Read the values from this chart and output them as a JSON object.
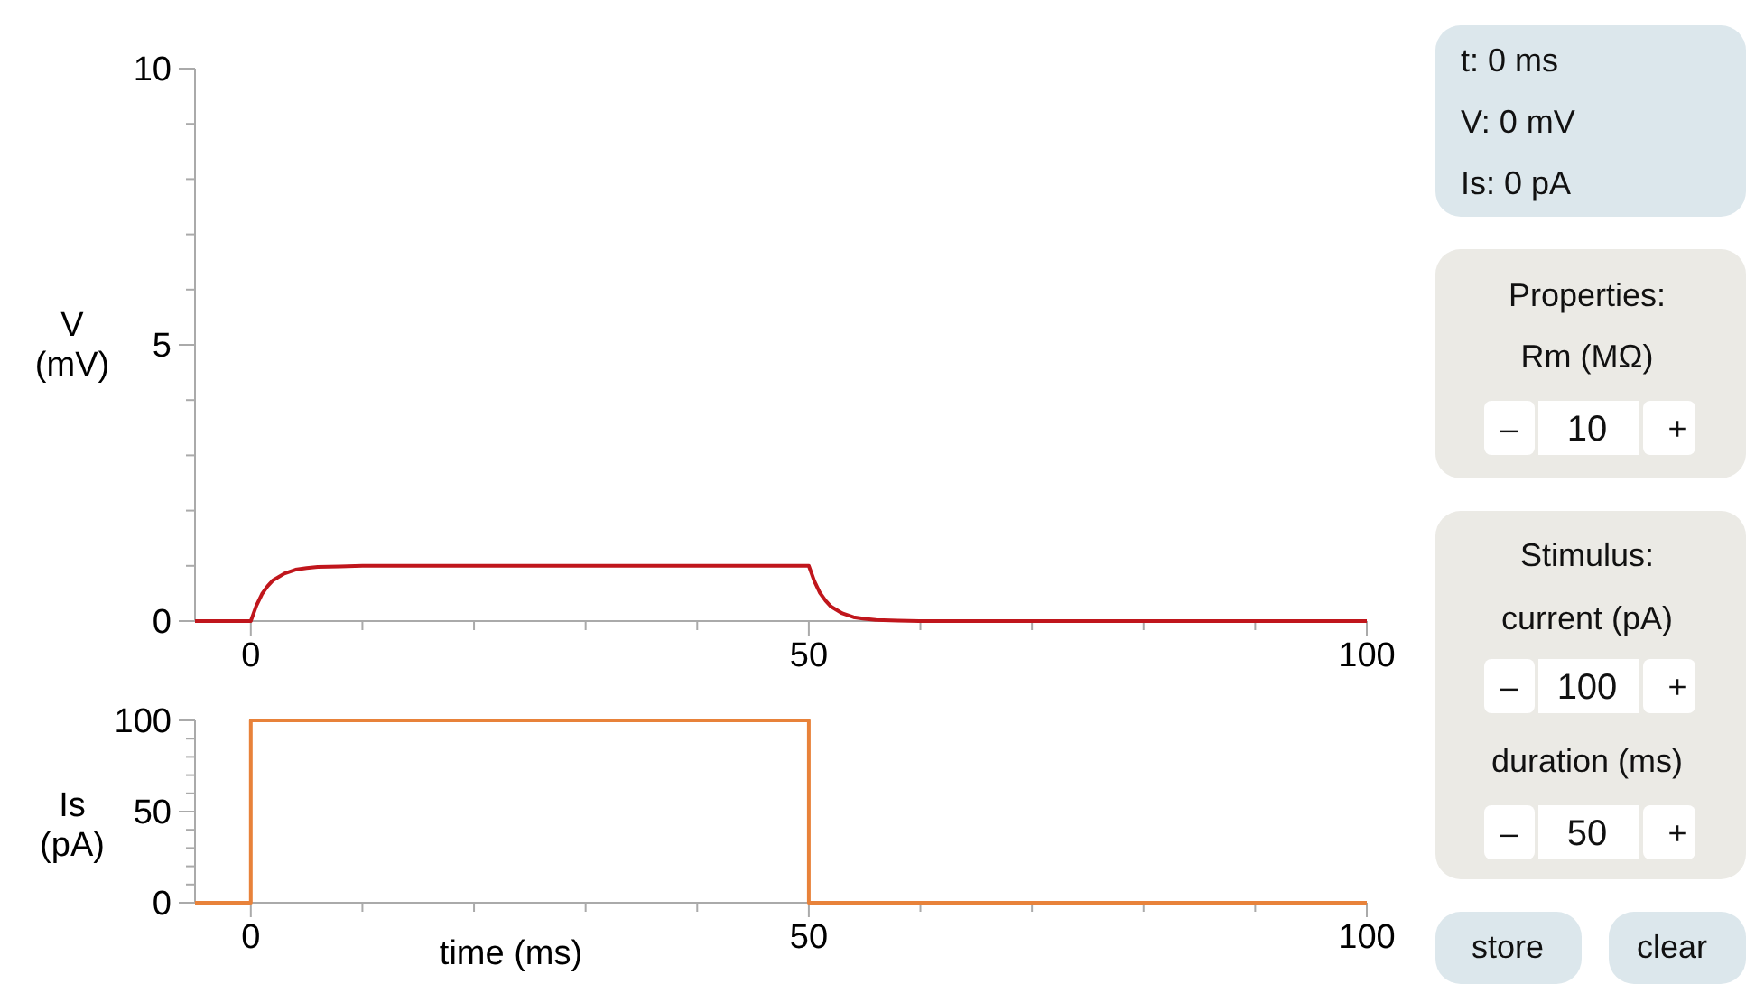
{
  "chart_data": [
    {
      "type": "line",
      "ylabel": "V (mV)",
      "xlim": [
        -5,
        100
      ],
      "ylim": [
        0,
        10
      ],
      "xticks": [
        0,
        {
          "value": 10,
          "label": null
        },
        {
          "value": 20,
          "label": null
        },
        {
          "value": 30,
          "label": null
        },
        {
          "value": 40,
          "label": null
        },
        50,
        {
          "value": 60,
          "label": null
        },
        {
          "value": 70,
          "label": null
        },
        {
          "value": 80,
          "label": null
        },
        {
          "value": 90,
          "label": null
        },
        100
      ],
      "yticks": [
        0,
        {
          "value": 1,
          "label": null
        },
        {
          "value": 2,
          "label": null
        },
        {
          "value": 3,
          "label": null
        },
        {
          "value": 4,
          "label": null
        },
        5,
        {
          "value": 6,
          "label": null
        },
        {
          "value": 7,
          "label": null
        },
        {
          "value": 8,
          "label": null
        },
        {
          "value": 9,
          "label": null
        },
        10
      ],
      "series": [
        {
          "color": "#c0161c",
          "x": [
            -5,
            0,
            0.5,
            1,
            1.5,
            2,
            3,
            4,
            5,
            6,
            8,
            10,
            50,
            50.5,
            51,
            51.5,
            52,
            53,
            54,
            55,
            56,
            58,
            60,
            100
          ],
          "values": [
            0,
            0,
            0.28,
            0.49,
            0.63,
            0.74,
            0.86,
            0.93,
            0.96,
            0.98,
            0.99,
            1,
            1,
            0.72,
            0.51,
            0.37,
            0.26,
            0.14,
            0.07,
            0.04,
            0.02,
            0.01,
            0,
            0
          ]
        }
      ]
    },
    {
      "type": "step",
      "ylabel": "Is (pA)",
      "xlabel": "time (ms)",
      "xlim": [
        -5,
        100
      ],
      "ylim": [
        0,
        100
      ],
      "xticks": [
        0,
        {
          "value": 10,
          "label": null
        },
        {
          "value": 20,
          "label": null
        },
        {
          "value": 30,
          "label": null
        },
        {
          "value": 40,
          "label": null
        },
        50,
        {
          "value": 60,
          "label": null
        },
        {
          "value": 70,
          "label": null
        },
        {
          "value": 80,
          "label": null
        },
        {
          "value": 90,
          "label": null
        },
        100
      ],
      "yticks": [
        0,
        {
          "value": 10,
          "label": null
        },
        {
          "value": 20,
          "label": null
        },
        {
          "value": 30,
          "label": null
        },
        {
          "value": 40,
          "label": null
        },
        50,
        {
          "value": 60,
          "label": null
        },
        {
          "value": 70,
          "label": null
        },
        {
          "value": 80,
          "label": null
        },
        {
          "value": 90,
          "label": null
        },
        100
      ],
      "series": [
        {
          "color": "#e8823a",
          "x": [
            -5,
            0,
            50,
            100
          ],
          "values": [
            0,
            100,
            0,
            0
          ]
        }
      ]
    },
    {
      "type": "other",
      "annotations": [
        "t: 0 ms",
        "V: 0 mV",
        "Is: 0 pA",
        "Properties:",
        "Rm (MΩ)",
        "–",
        "10",
        "+",
        "Stimulus:",
        "current (pA)",
        "–",
        "100",
        "+",
        "duration (ms)",
        "–",
        "50",
        "+",
        "store",
        "clear"
      ]
    }
  ]
}
